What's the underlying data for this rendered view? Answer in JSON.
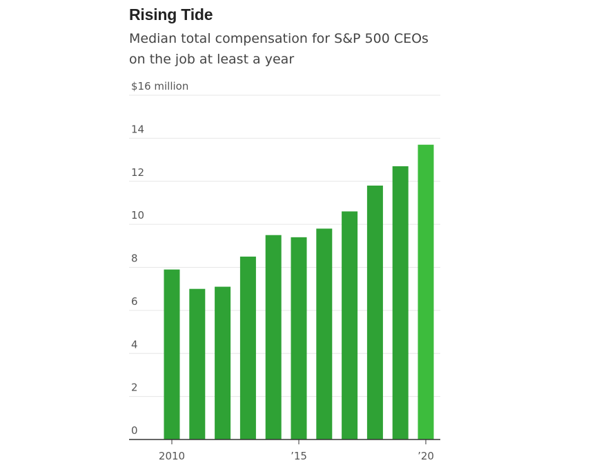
{
  "chart_data": {
    "type": "bar",
    "title": "Rising Tide",
    "subtitle": "Median total compensation for S&P 500 CEOs on the job at least a year",
    "xlabel": "",
    "ylabel": "",
    "ylim": [
      0,
      16
    ],
    "y_ticks": [
      {
        "value": 0,
        "label": "0"
      },
      {
        "value": 2,
        "label": "2"
      },
      {
        "value": 4,
        "label": "4"
      },
      {
        "value": 6,
        "label": "6"
      },
      {
        "value": 8,
        "label": "8"
      },
      {
        "value": 10,
        "label": "10"
      },
      {
        "value": 12,
        "label": "12"
      },
      {
        "value": 14,
        "label": "14"
      },
      {
        "value": 16,
        "label": "$16 million"
      }
    ],
    "x_ticks": [
      {
        "category": "2010",
        "label": "2010"
      },
      {
        "category": "2015",
        "label": "’15"
      },
      {
        "category": "2020",
        "label": "’20"
      }
    ],
    "grid": true,
    "categories": [
      "2010",
      "2011",
      "2012",
      "2013",
      "2014",
      "2015",
      "2016",
      "2017",
      "2018",
      "2019",
      "2020"
    ],
    "values": [
      7.9,
      7.0,
      7.1,
      8.5,
      9.5,
      9.4,
      9.8,
      10.6,
      11.8,
      12.7,
      13.7
    ],
    "colors": {
      "bar": "#2fa235",
      "highlight": "#3dbc3d",
      "grid": "#e6e6e6",
      "axis": "#333333"
    }
  }
}
